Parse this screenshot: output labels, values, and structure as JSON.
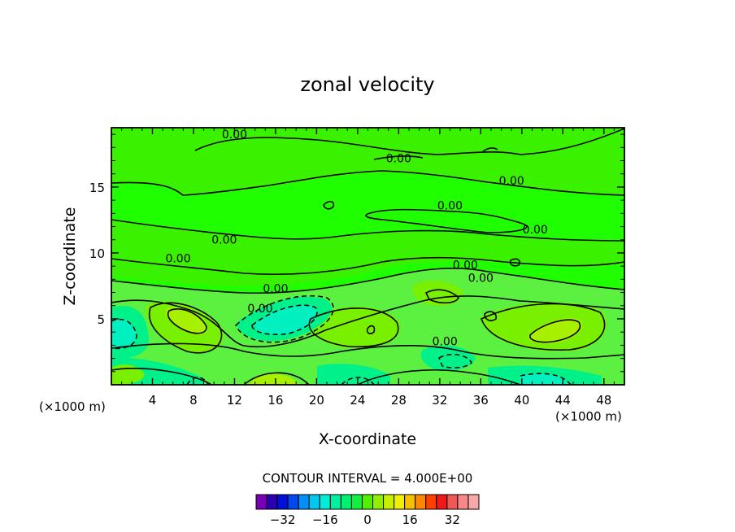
{
  "chart_data": {
    "type": "heatmap",
    "title": "zonal velocity",
    "xlabel": "X-coordinate",
    "ylabel": "Z-coordinate",
    "x_unit_left": "(×1000 m)",
    "x_unit_right": "(×1000 m)",
    "xlim": [
      0,
      50
    ],
    "ylim": [
      0,
      19.5
    ],
    "x_ticks": [
      4,
      8,
      12,
      16,
      20,
      24,
      28,
      32,
      36,
      40,
      44,
      48
    ],
    "y_ticks": [
      5,
      10,
      15
    ],
    "contour_interval_text": "CONTOUR INTERVAL = 4.000E+00",
    "contour_labels": [
      {
        "text": "0.00",
        "x": 12.0,
        "z": 19.0
      },
      {
        "text": "0.00",
        "x": 28.0,
        "z": 17.2
      },
      {
        "text": "0.00",
        "x": 39.0,
        "z": 15.5
      },
      {
        "text": "0.00",
        "x": 33.0,
        "z": 13.6
      },
      {
        "text": "0.00",
        "x": 41.3,
        "z": 11.8
      },
      {
        "text": "0.00",
        "x": 11.0,
        "z": 11.0
      },
      {
        "text": "0.00",
        "x": 6.5,
        "z": 9.6
      },
      {
        "text": "0.00",
        "x": 34.5,
        "z": 9.1
      },
      {
        "text": "0.00",
        "x": 36.0,
        "z": 8.1
      },
      {
        "text": "0.00",
        "x": 16.0,
        "z": 7.3
      },
      {
        "text": "0.00",
        "x": 14.5,
        "z": 5.8
      },
      {
        "text": "0.00",
        "x": 32.5,
        "z": 3.3
      }
    ],
    "colorbar": {
      "colors": [
        "#7a00b8",
        "#2a00b0",
        "#0010d8",
        "#0048f0",
        "#0090f8",
        "#00c8f0",
        "#00eed8",
        "#00f0a0",
        "#00f070",
        "#10f040",
        "#50f000",
        "#90f000",
        "#c8f000",
        "#f0f000",
        "#f8c000",
        "#ff8800",
        "#ff4000",
        "#f01818",
        "#f05858",
        "#f88888",
        "#f8a8a8"
      ],
      "tick_labels": [
        "−32",
        "−16",
        "0",
        "16",
        "32"
      ],
      "tick_values": [
        -32,
        -16,
        0,
        16,
        32
      ]
    },
    "field_levels": {
      "background": "#22ff00",
      "upper_band": "#44f000",
      "mid_band": "#60f040",
      "weak_negative": "#00f078",
      "moderate_negative": "#00f0c0",
      "positive_core": "#a8f000",
      "mild_positive": "#70f000"
    }
  }
}
